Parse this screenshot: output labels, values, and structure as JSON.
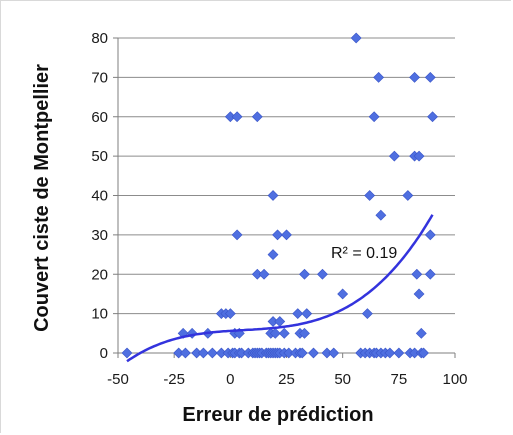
{
  "chart_data": {
    "type": "scatter",
    "xlabel": "Erreur de prédiction",
    "ylabel": "Couvert ciste de Montpellier",
    "xlim": [
      -50,
      100
    ],
    "ylim": [
      0,
      80
    ],
    "xticks": [
      "-50",
      "-25",
      "0",
      "25",
      "50",
      "75",
      "100"
    ],
    "yticks": [
      "0",
      "10",
      "20",
      "30",
      "40",
      "50",
      "60",
      "70",
      "80"
    ],
    "grid": "horizontal",
    "annotation": "R² = 0.19",
    "marker_color": "#4f6fe0",
    "trend_color": "#3333dd",
    "trendline": {
      "type": "polynomial",
      "coef": [
        5.62,
        0.0369,
        -0.000789,
        4.47e-05
      ]
    },
    "points": [
      {
        "x": -46,
        "y": 0
      },
      {
        "x": -23,
        "y": 0
      },
      {
        "x": -20,
        "y": 0
      },
      {
        "x": -15,
        "y": 0
      },
      {
        "x": -12,
        "y": 0
      },
      {
        "x": -8,
        "y": 0
      },
      {
        "x": -4,
        "y": 0
      },
      {
        "x": -1,
        "y": 0
      },
      {
        "x": 1,
        "y": 0
      },
      {
        "x": 2,
        "y": 0
      },
      {
        "x": 4,
        "y": 0
      },
      {
        "x": 5,
        "y": 0
      },
      {
        "x": 8,
        "y": 0
      },
      {
        "x": 10,
        "y": 0
      },
      {
        "x": 11,
        "y": 0
      },
      {
        "x": 12,
        "y": 0
      },
      {
        "x": 13,
        "y": 0
      },
      {
        "x": 14,
        "y": 0
      },
      {
        "x": 16,
        "y": 0
      },
      {
        "x": 17,
        "y": 0
      },
      {
        "x": 18,
        "y": 0
      },
      {
        "x": 19,
        "y": 0
      },
      {
        "x": 20,
        "y": 0
      },
      {
        "x": 21,
        "y": 0
      },
      {
        "x": 22,
        "y": 0
      },
      {
        "x": 24,
        "y": 0
      },
      {
        "x": 26,
        "y": 0
      },
      {
        "x": 29,
        "y": 0
      },
      {
        "x": 31,
        "y": 0
      },
      {
        "x": 32,
        "y": 0
      },
      {
        "x": 37,
        "y": 0
      },
      {
        "x": 43,
        "y": 0
      },
      {
        "x": 46,
        "y": 0
      },
      {
        "x": 58,
        "y": 0
      },
      {
        "x": 60,
        "y": 0
      },
      {
        "x": 62,
        "y": 0
      },
      {
        "x": 64,
        "y": 0
      },
      {
        "x": 65,
        "y": 0
      },
      {
        "x": 67,
        "y": 0
      },
      {
        "x": 69,
        "y": 0
      },
      {
        "x": 71,
        "y": 0
      },
      {
        "x": 75,
        "y": 0
      },
      {
        "x": 80,
        "y": 0
      },
      {
        "x": 82,
        "y": 0
      },
      {
        "x": 85,
        "y": 0
      },
      {
        "x": 86,
        "y": 0
      },
      {
        "x": -21,
        "y": 5
      },
      {
        "x": -17,
        "y": 5
      },
      {
        "x": -10,
        "y": 5
      },
      {
        "x": 2,
        "y": 5
      },
      {
        "x": 4,
        "y": 5
      },
      {
        "x": 18,
        "y": 5
      },
      {
        "x": 20,
        "y": 5
      },
      {
        "x": 24,
        "y": 5
      },
      {
        "x": 31,
        "y": 5
      },
      {
        "x": 33,
        "y": 5
      },
      {
        "x": 85,
        "y": 5
      },
      {
        "x": -4,
        "y": 10
      },
      {
        "x": -2,
        "y": 10
      },
      {
        "x": 0,
        "y": 10
      },
      {
        "x": 30,
        "y": 10
      },
      {
        "x": 34,
        "y": 10
      },
      {
        "x": 61,
        "y": 10
      },
      {
        "x": 19,
        "y": 8
      },
      {
        "x": 22,
        "y": 8
      },
      {
        "x": 50,
        "y": 15
      },
      {
        "x": 84,
        "y": 15
      },
      {
        "x": 12,
        "y": 20
      },
      {
        "x": 15,
        "y": 20
      },
      {
        "x": 33,
        "y": 20
      },
      {
        "x": 41,
        "y": 20
      },
      {
        "x": 83,
        "y": 20
      },
      {
        "x": 89,
        "y": 20
      },
      {
        "x": 19,
        "y": 25
      },
      {
        "x": 3,
        "y": 30
      },
      {
        "x": 21,
        "y": 30
      },
      {
        "x": 25,
        "y": 30
      },
      {
        "x": 89,
        "y": 30
      },
      {
        "x": 67,
        "y": 35
      },
      {
        "x": 19,
        "y": 40
      },
      {
        "x": 62,
        "y": 40
      },
      {
        "x": 79,
        "y": 40
      },
      {
        "x": 73,
        "y": 50
      },
      {
        "x": 82,
        "y": 50
      },
      {
        "x": 84,
        "y": 50
      },
      {
        "x": 0,
        "y": 60
      },
      {
        "x": 3,
        "y": 60
      },
      {
        "x": 12,
        "y": 60
      },
      {
        "x": 64,
        "y": 60
      },
      {
        "x": 90,
        "y": 60
      },
      {
        "x": 66,
        "y": 70
      },
      {
        "x": 82,
        "y": 70
      },
      {
        "x": 89,
        "y": 70
      },
      {
        "x": 56,
        "y": 80
      }
    ]
  }
}
